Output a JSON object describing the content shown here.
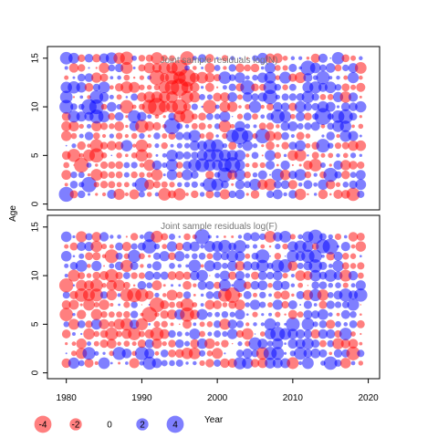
{
  "chart_data": [
    {
      "type": "scatter",
      "title": "Joint sample residuals log(N)",
      "xlabel": "",
      "ylabel": "Age",
      "xlim": [
        1977.5,
        2021.5
      ],
      "ylim": [
        -0.6,
        16.2
      ],
      "yticks": [
        0,
        5,
        10,
        15
      ],
      "xticks": [],
      "x_range": [
        1980,
        2019
      ],
      "y_range": [
        1,
        15
      ],
      "seed": 7,
      "positive_color": "#0000FF",
      "negative_color": "#FF0000",
      "hot_spots": [
        {
          "x": 1994,
          "y": 12,
          "bias": -2.0
        },
        {
          "x": 1982,
          "y": 6,
          "bias": -1.3
        },
        {
          "x": 1999,
          "y": 5,
          "bias": 1.5
        },
        {
          "x": 1982,
          "y": 10,
          "bias": 1.2
        },
        {
          "x": 2014,
          "y": 9,
          "bias": 1.4
        },
        {
          "x": 2008,
          "y": 12,
          "bias": 1.0
        }
      ]
    },
    {
      "type": "scatter",
      "title": "Joint sample residuals log(F)",
      "xlabel": "Year",
      "ylabel": "Age",
      "xlim": [
        1977.5,
        2021.5
      ],
      "ylim": [
        -0.6,
        16.2
      ],
      "yticks": [
        0,
        5,
        10,
        15
      ],
      "xticks": [
        1980,
        1990,
        2000,
        2010,
        2020
      ],
      "x_range": [
        1980,
        2019
      ],
      "y_range": [
        1,
        14
      ],
      "seed": 19,
      "positive_color": "#0000FF",
      "negative_color": "#FF0000",
      "hot_spots": [
        {
          "x": 1988,
          "y": 5,
          "bias": -1.4
        },
        {
          "x": 1985,
          "y": 9,
          "bias": -1.1
        },
        {
          "x": 2000,
          "y": 12,
          "bias": 1.3
        },
        {
          "x": 2012,
          "y": 12,
          "bias": 1.0
        },
        {
          "x": 2010,
          "y": 3,
          "bias": 1.1
        },
        {
          "x": 2019,
          "y": 8,
          "bias": 1.2
        }
      ]
    }
  ],
  "legend": {
    "items": [
      {
        "label": "-4",
        "value": -4
      },
      {
        "label": "-2",
        "value": -2
      },
      {
        "label": "0",
        "value": 0
      },
      {
        "label": "2",
        "value": 2
      },
      {
        "label": "4",
        "value": 4
      }
    ],
    "title": "Year"
  }
}
